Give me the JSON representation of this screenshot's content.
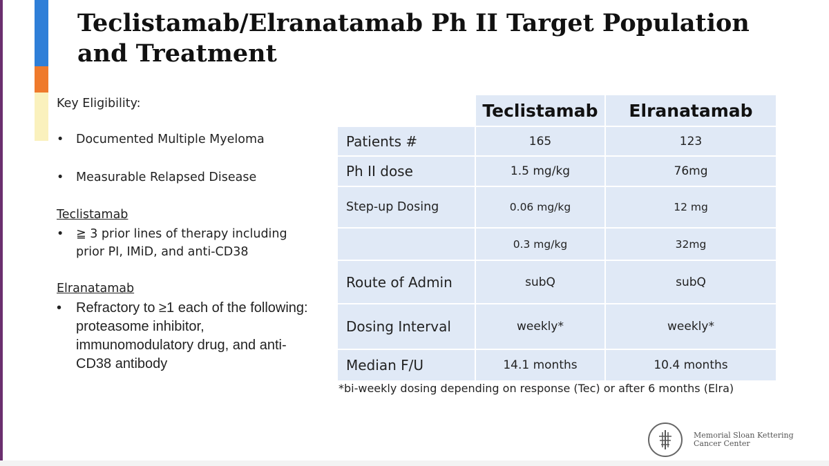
{
  "slide": {
    "title": "Teclistamab/Elranatamab Ph II Target Population and Treatment",
    "key_eligibility_heading": "Key Eligibility:",
    "bullet_char": "•",
    "eligibility_bullets": [
      "Documented Multiple Myeloma",
      "Measurable Relapsed Disease"
    ],
    "teclistamab_section": {
      "heading": "Teclistamab",
      "bullet": "≧ 3 prior lines of therapy including prior PI, IMiD, and anti-CD38"
    },
    "elranatamab_section": {
      "heading": "Elranatamab",
      "bullet": "Refractory to ≥1 each of the following: proteasome inhibitor, immunomodulatory drug, and anti-CD38 antibody"
    }
  },
  "table": {
    "headers": [
      "",
      "Teclistamab",
      "Elranatamab"
    ],
    "rows": [
      [
        "Patients #",
        "165",
        "123"
      ],
      [
        "Ph II dose",
        "1.5 mg/kg",
        "76mg"
      ],
      [
        "Step-up Dosing",
        "0.06 mg/kg",
        "12 mg"
      ],
      [
        "",
        "0.3 mg/kg",
        "32mg"
      ],
      [
        "Route of Admin",
        "subQ",
        "subQ"
      ],
      [
        "Dosing Interval",
        "weekly*",
        "weekly*"
      ],
      [
        "Median F/U",
        "14.1 months",
        "10.4 months"
      ]
    ],
    "footnote": "*bi-weekly dosing depending on response (Tec) or after 6 months (Elra)"
  },
  "logo": {
    "name_line1": "Memorial Sloan Kettering",
    "name_line2": "Cancer Center",
    "icon": "msk-tree-icon"
  },
  "colors": {
    "accent_blue": "#2f7fd8",
    "accent_orange": "#ef7a2c",
    "accent_yellow": "#faf1bd",
    "table_fill": "#e0e9f6",
    "left_border": "#6b2f6f"
  }
}
